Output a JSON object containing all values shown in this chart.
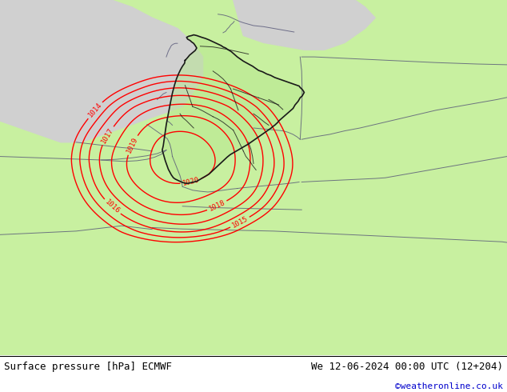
{
  "title_left": "Surface pressure [hPa] ECMWF",
  "title_right": "We 12-06-2024 00:00 UTC (12+204)",
  "credit": "©weatheronline.co.uk",
  "bg_color_land": "#c8f0a0",
  "bg_color_sea": "#d0d0d0",
  "isobar_color": "#ff0000",
  "border_color": "#1a1a1a",
  "state_border_color": "#555577",
  "label_color": "#ff0000",
  "bottom_bar_color": "#ffffff",
  "bottom_text_color": "#000000",
  "credit_color": "#0000cc",
  "figsize": [
    6.34,
    4.9
  ],
  "dpi": 100
}
